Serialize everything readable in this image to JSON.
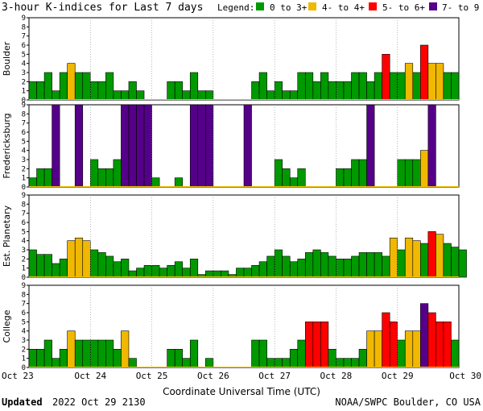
{
  "title": "3-hour K-indices for Last 7 days",
  "legend": {
    "label": "Legend:",
    "items": [
      {
        "label": "0 to 3+",
        "color": "#009900"
      },
      {
        "label": "4- to 4+",
        "color": "#f0b800"
      },
      {
        "label": "5- to 6+",
        "color": "#ff0000"
      },
      {
        "label": "7- to 9",
        "color": "#550088"
      }
    ]
  },
  "footer": {
    "updated_label": "Updated",
    "updated_value": "2022 Oct 29 2130",
    "source": "NOAA/SWPC Boulder, CO USA"
  },
  "chart_data": {
    "type": "bar",
    "xlabel": "Coordinate Universal Time (UTC)",
    "x_ticks": [
      "Oct 23",
      "Oct 24",
      "Oct 25",
      "Oct 26",
      "Oct 27",
      "Oct 28",
      "Oct 29",
      "Oct 30"
    ],
    "ylim": [
      0,
      9
    ],
    "y_ticks": [
      0,
      1,
      2,
      3,
      4,
      5,
      6,
      7,
      8,
      9
    ],
    "bins_per_day": 8,
    "panels": [
      {
        "name": "Boulder",
        "values": [
          2,
          2,
          3,
          1,
          3,
          4,
          3,
          3,
          2,
          2,
          3,
          1,
          1,
          2,
          1,
          0,
          0,
          0,
          2,
          2,
          1,
          3,
          1,
          1,
          0,
          0,
          0,
          0,
          0,
          2,
          3,
          1,
          2,
          1,
          1,
          3,
          3,
          2,
          3,
          2,
          2,
          2,
          3,
          3,
          2,
          3,
          5,
          3,
          3,
          4,
          3,
          6,
          4,
          4,
          3,
          3,
          0
        ]
      },
      {
        "name": "Fredericksburg",
        "values": [
          1,
          2,
          2,
          9,
          0,
          0,
          9,
          0,
          3,
          2,
          2,
          3,
          9,
          9,
          9,
          9,
          1,
          0,
          0,
          1,
          0,
          9,
          9,
          9,
          0,
          0,
          0,
          0,
          9,
          0,
          0,
          0,
          3,
          2,
          1,
          2,
          0,
          0,
          0,
          0,
          2,
          2,
          3,
          3,
          9,
          0,
          0,
          0,
          3,
          3,
          3,
          4,
          9,
          0,
          0,
          0,
          0
        ]
      },
      {
        "name": "Est. Planetary",
        "values": [
          3,
          2.5,
          2.5,
          1.5,
          2,
          4,
          4.3,
          4,
          3,
          2.7,
          2.3,
          1.7,
          2,
          0.7,
          1,
          1.3,
          1.3,
          1,
          1.3,
          1.7,
          1,
          2,
          0.3,
          0.7,
          0.7,
          0.7,
          0.3,
          1,
          1,
          1.3,
          1.7,
          2.3,
          3,
          2.3,
          1.7,
          2,
          2.7,
          3,
          2.7,
          2.3,
          2,
          2,
          2.3,
          2.7,
          2.7,
          2.7,
          2.3,
          4.3,
          3,
          4.3,
          4,
          3.7,
          5,
          4.7,
          3.7,
          3.3,
          3
        ]
      },
      {
        "name": "College",
        "values": [
          2,
          2,
          3,
          1,
          2,
          4,
          3,
          3,
          3,
          3,
          3,
          2,
          4,
          1,
          0,
          0,
          0,
          0,
          2,
          2,
          1,
          3,
          0,
          1,
          0,
          0,
          0,
          0,
          0,
          3,
          3,
          1,
          1,
          1,
          2,
          3,
          5,
          5,
          5,
          2,
          1,
          1,
          1,
          2,
          4,
          4,
          6,
          5,
          3,
          4,
          4,
          7,
          6,
          5,
          5,
          3,
          0
        ]
      }
    ]
  }
}
